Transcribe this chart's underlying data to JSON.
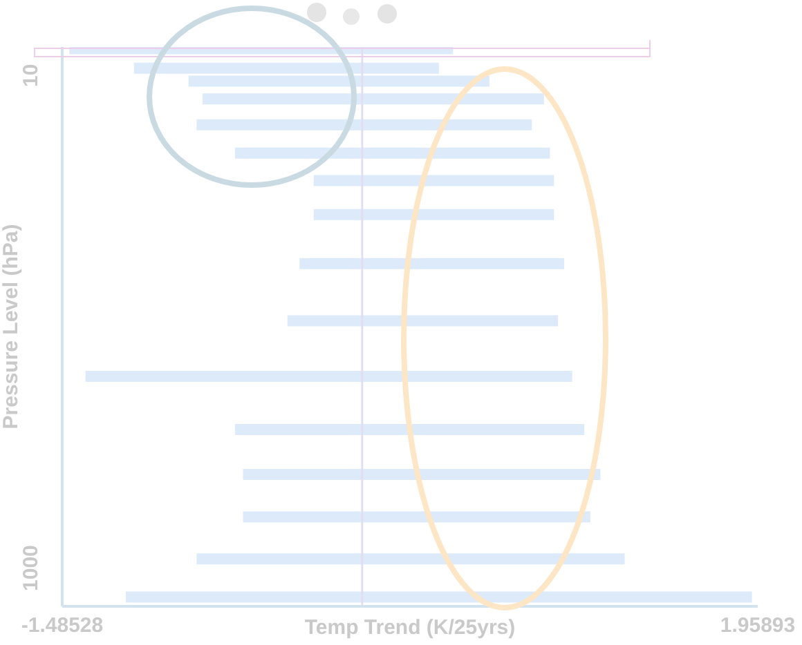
{
  "chart_data": {
    "type": "bar",
    "orientation": "horizontal",
    "xlabel": "Temp Trend (K/25yrs)",
    "ylabel": "Pressure Level (hPa)",
    "x": [
      7.75,
      9.3,
      10.5,
      12.4,
      15.8,
      20.6,
      26.6,
      36.6,
      57.8,
      98.7,
      166,
      273,
      415,
      617,
      914,
      1306
    ],
    "series": [
      {
        "color": "#dceafa",
        "base": [
          -1.45,
          -1.13,
          -0.86,
          -0.79,
          -0.82,
          -0.63,
          -0.24,
          -0.24,
          -0.31,
          -0.37,
          -1.37,
          -0.63,
          -0.59,
          -0.59,
          -0.82,
          -1.17
        ],
        "values": [
          1.9,
          1.51,
          1.49,
          1.69,
          1.66,
          1.56,
          1.19,
          1.19,
          1.31,
          1.34,
          2.41,
          1.73,
          1.77,
          1.72,
          2.12,
          3.1
        ]
      }
    ],
    "xlim": [
      -1.48528,
      1.95893
    ],
    "xticks": [
      -1.48528,
      1.95893
    ],
    "ylim": [
      1430,
      7.66
    ],
    "yticks": [
      10,
      1000
    ],
    "log": "y",
    "ref_lines": [
      {
        "axis": "x",
        "value": 0,
        "color": "#e2def2"
      }
    ]
  }
}
